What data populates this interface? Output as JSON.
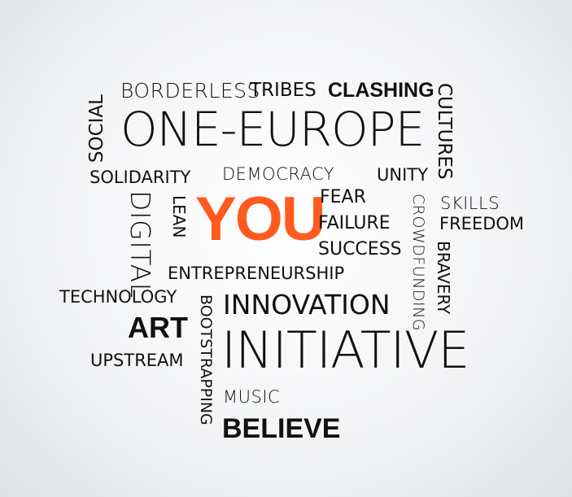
{
  "words": {
    "borderless": "BORDERLESS",
    "tribes": "TRIBES",
    "clashing": "CLASHING",
    "social": "SOCIAL",
    "one_europe": "ONE-EUROPE",
    "cultures": "CULTURES",
    "solidarity": "SOLIDARITY",
    "democracy": "DEMOCRACY",
    "unity": "UNITY",
    "digital": "DIGITAL",
    "lean": "LEAN",
    "you": "YOU",
    "fear": "FEAR",
    "failure": "FAILURE",
    "success": "SUCCESS",
    "crowdfunding": "CROWDFUNDING",
    "skills": "SKILLS",
    "freedom": "FREEDOM",
    "bravery": "BRAVERY",
    "entrepreneurship": "ENTREPRENEURSHIP",
    "technology": "TECHNOLOGY",
    "bootstrapping": "BOOTSTRAPPING",
    "innovation": "INNOVATION",
    "art": "ART",
    "initiative": "INITIATIVE",
    "upstream": "UPSTREAM",
    "music": "MUSIC",
    "believe": "BELIEVE"
  },
  "colors": {
    "text": "#111111",
    "accent": "#ff5a1f"
  }
}
